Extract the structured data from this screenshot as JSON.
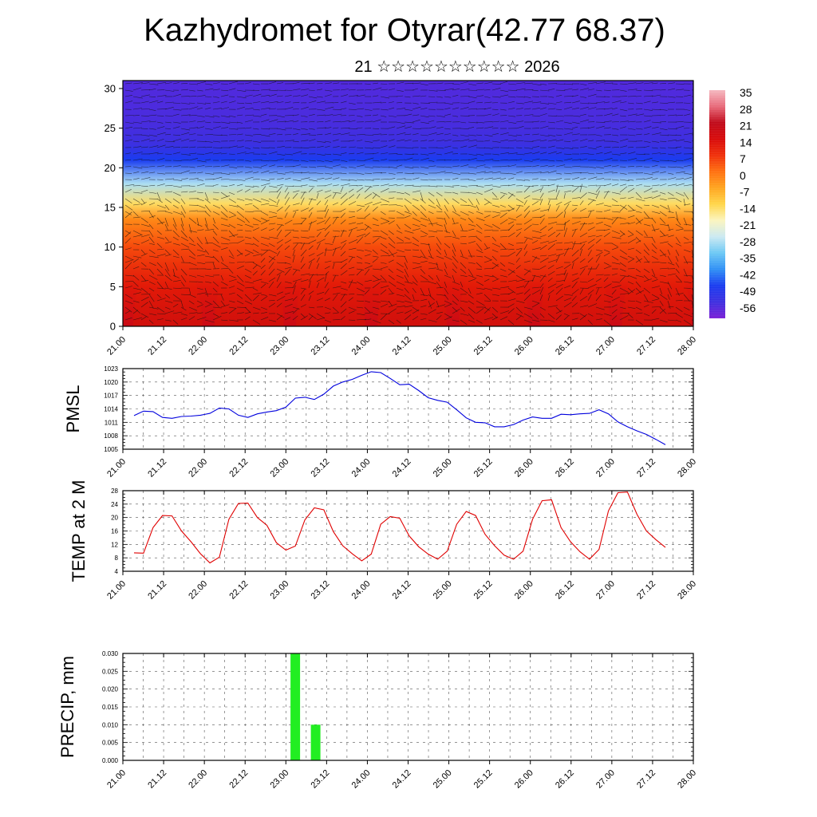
{
  "title": "Kazhydromet for Otyrar(42.77 68.37)",
  "subtitle": "21 ☆☆☆☆☆☆☆☆☆☆ 2026",
  "colors": {
    "pmsl_line": "#0000dd",
    "temp_line": "#e00000",
    "precip_bar": "#22ee22",
    "frame": "#000000",
    "grid": "#555555"
  },
  "chart_data": [
    {
      "type": "heatmap",
      "name": "vertical-cross-section",
      "x_tick_labels": [
        "21.00",
        "21.12",
        "22.00",
        "22.12",
        "23.00",
        "23.12",
        "24.00",
        "24.12",
        "25.00",
        "25.12",
        "26.00",
        "26.12",
        "27.00",
        "27.12",
        "28.00"
      ],
      "y_ticks": [
        0,
        5,
        10,
        15,
        20,
        25,
        30
      ],
      "ylim": [
        0,
        31
      ],
      "colorbar_labels": [
        "35",
        "28",
        "21",
        "14",
        "7",
        "0",
        "-7",
        "-14",
        "-21",
        "-28",
        "-35",
        "-42",
        "-49",
        "-56"
      ],
      "colorbar_range": [
        -63,
        42
      ],
      "colorbar_stops": [
        "#7a1fd6",
        "#3e2fe0",
        "#1a3cf0",
        "#2f8ff5",
        "#6cc8f5",
        "#cbe9f2",
        "#fbf5c0",
        "#ffd64a",
        "#ffa51f",
        "#ff7010",
        "#f0300a",
        "#d80a0a",
        "#c00a1a",
        "#e86a7a",
        "#f5b8c0"
      ],
      "layer_profile": [
        {
          "level": 0,
          "temp": 24
        },
        {
          "level": 5,
          "temp": 17
        },
        {
          "level": 10,
          "temp": 9
        },
        {
          "level": 13.5,
          "temp": 1
        },
        {
          "level": 15.5,
          "temp": -12
        },
        {
          "level": 18,
          "temp": -28
        },
        {
          "level": 21,
          "temp": -48
        },
        {
          "level": 23,
          "temp": -55
        },
        {
          "level": 26,
          "temp": -57
        },
        {
          "level": 31,
          "temp": -58
        }
      ]
    },
    {
      "type": "line",
      "name": "pmsl",
      "ylabel": "PMSL",
      "x_tick_labels": [
        "21.00",
        "21.12",
        "22.00",
        "22.12",
        "23.00",
        "23.12",
        "24.00",
        "24.12",
        "25.00",
        "25.12",
        "26.00",
        "26.12",
        "27.00",
        "27.12",
        "28.00"
      ],
      "y_ticks": [
        1005,
        1008,
        1011,
        1014,
        1017,
        1020,
        1023
      ],
      "ylim": [
        1005,
        1023
      ],
      "x": [
        0,
        3,
        6,
        9,
        12,
        15,
        18,
        21,
        24,
        27,
        30,
        33,
        36,
        39,
        42,
        45,
        48,
        51,
        54,
        57,
        60,
        63,
        66,
        69,
        72,
        75,
        78,
        81,
        84,
        87,
        90,
        93,
        96,
        99,
        102,
        105,
        108,
        111,
        114,
        117,
        120,
        123,
        126,
        129,
        132,
        135,
        138,
        141,
        144,
        147,
        150,
        153,
        156,
        159,
        162,
        165,
        168
      ],
      "values": [
        1012.5,
        1013.5,
        1013.4,
        1012.1,
        1011.9,
        1012.3,
        1012.4,
        1012.6,
        1013.0,
        1014.2,
        1014.0,
        1012.6,
        1012.1,
        1012.9,
        1013.3,
        1013.6,
        1014.4,
        1016.4,
        1016.6,
        1016.1,
        1017.3,
        1019.1,
        1020.0,
        1020.6,
        1021.5,
        1022.3,
        1022.1,
        1020.8,
        1019.4,
        1019.5,
        1018.1,
        1016.5,
        1015.9,
        1015.5,
        1013.8,
        1012.0,
        1011.0,
        1010.9,
        1010.0,
        1010.0,
        1010.5,
        1011.5,
        1012.2,
        1011.9,
        1011.9,
        1012.8,
        1012.7,
        1012.9,
        1013.0,
        1013.8,
        1012.9,
        1011.1,
        1010.0,
        1009.1,
        1008.3,
        1007.2,
        1006.0
      ]
    },
    {
      "type": "line",
      "name": "temp",
      "ylabel": "TEMP at 2 M",
      "x_tick_labels": [
        "21.00",
        "21.12",
        "22.00",
        "22.12",
        "23.00",
        "23.12",
        "24.00",
        "24.12",
        "25.00",
        "25.12",
        "26.00",
        "26.12",
        "27.00",
        "27.12",
        "28.00"
      ],
      "y_ticks": [
        4,
        8,
        12,
        16,
        20,
        24,
        28
      ],
      "ylim": [
        4,
        28
      ],
      "x": [
        0,
        3,
        6,
        9,
        12,
        15,
        18,
        21,
        24,
        27,
        30,
        33,
        36,
        39,
        42,
        45,
        48,
        51,
        54,
        57,
        60,
        63,
        66,
        69,
        72,
        75,
        78,
        81,
        84,
        87,
        90,
        93,
        96,
        99,
        102,
        105,
        108,
        111,
        114,
        117,
        120,
        123,
        126,
        129,
        132,
        135,
        138,
        141,
        144,
        147,
        150,
        153,
        156,
        159,
        162,
        165,
        168
      ],
      "values": [
        9.5,
        9.4,
        17.0,
        20.6,
        20.5,
        16.0,
        12.8,
        9.2,
        6.5,
        8.2,
        19.5,
        24.2,
        24.3,
        20.0,
        17.7,
        12.5,
        10.3,
        11.5,
        19.3,
        22.9,
        22.3,
        15.8,
        11.6,
        9.2,
        7.1,
        9.1,
        18.0,
        20.3,
        19.8,
        14.5,
        11.3,
        9.1,
        7.6,
        10.0,
        18.0,
        21.8,
        20.6,
        15.0,
        11.6,
        8.8,
        7.6,
        10.0,
        19.5,
        25.0,
        25.3,
        17.0,
        12.8,
        9.8,
        7.6,
        10.5,
        22.0,
        27.4,
        27.6,
        21.0,
        16.0,
        13.4,
        11.1
      ]
    },
    {
      "type": "bar",
      "name": "precip",
      "ylabel": "PRECIP, mm",
      "x_tick_labels": [
        "21.00",
        "21.12",
        "22.00",
        "22.12",
        "23.00",
        "23.12",
        "24.00",
        "24.12",
        "25.00",
        "25.12",
        "26.00",
        "26.12",
        "27.00",
        "27.12",
        "28.00"
      ],
      "y_tick_labels": [
        "0.000",
        "0.005",
        "0.010",
        "0.015",
        "0.020",
        "0.025",
        "0.030"
      ],
      "ylim": [
        0,
        0.03
      ],
      "x": [
        51,
        57
      ],
      "values": [
        0.03,
        0.01
      ]
    }
  ]
}
